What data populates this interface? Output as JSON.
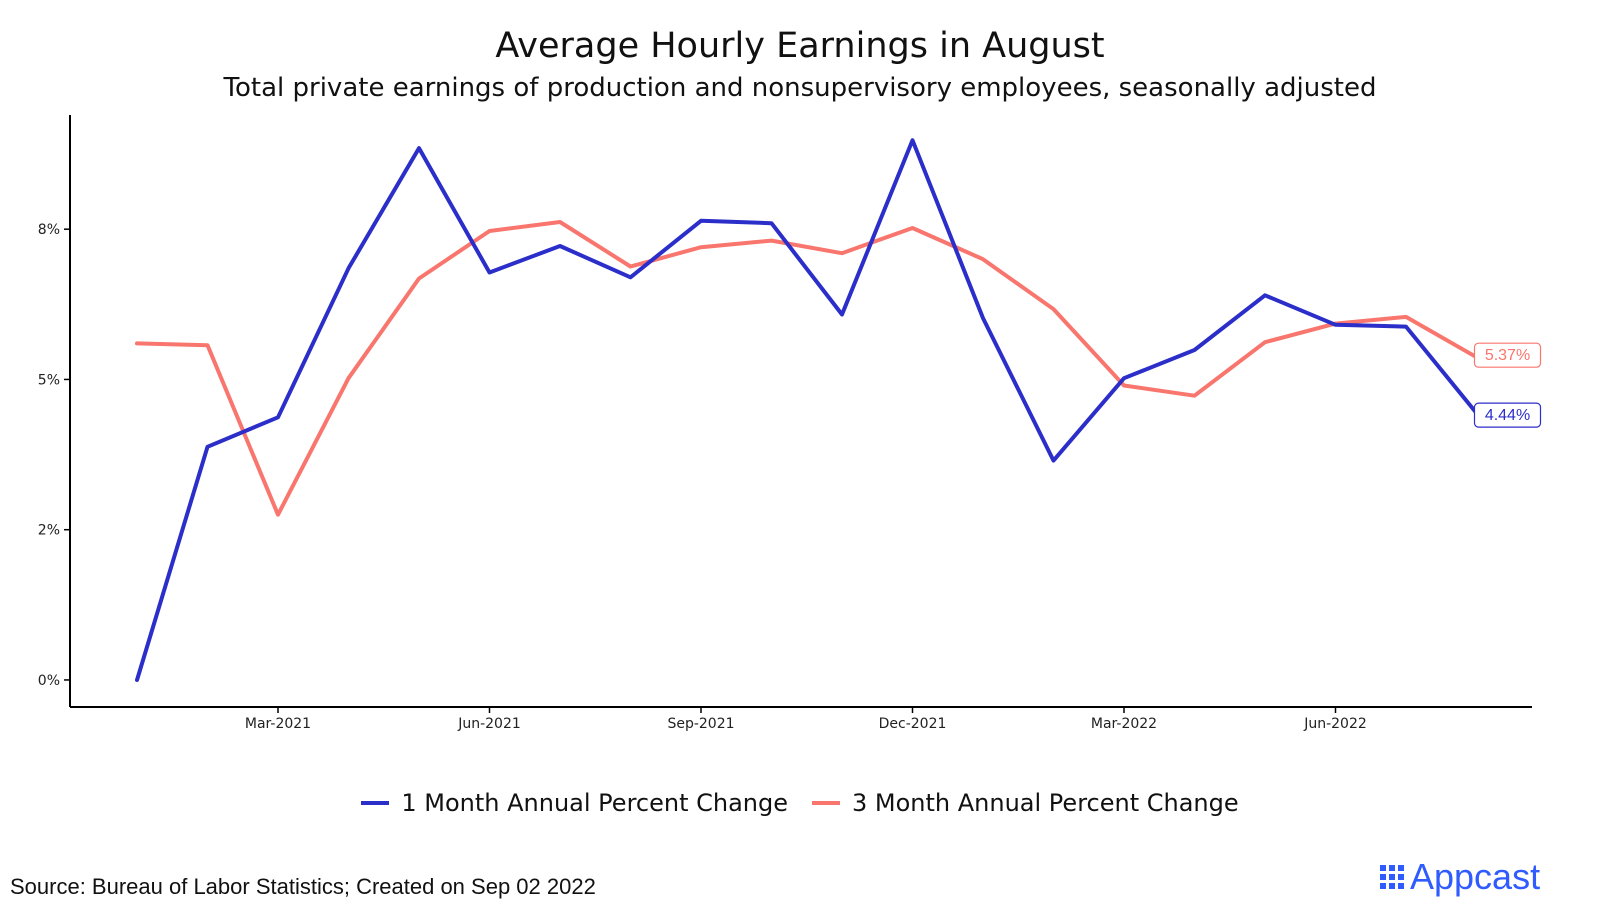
{
  "title": "Average Hourly Earnings in August",
  "subtitle": "Total private earnings of production and nonsupervisory employees, seasonally adjusted",
  "source": "Source: Bureau of Labor Statistics; Created on Sep 02 2022",
  "brand": {
    "name": "Appcast",
    "color": "#2f5bff"
  },
  "chart_data": {
    "type": "line",
    "x": [
      "Jan-2021",
      "Feb-2021",
      "Mar-2021",
      "Apr-2021",
      "May-2021",
      "Jun-2021",
      "Jul-2021",
      "Aug-2021",
      "Sep-2021",
      "Oct-2021",
      "Nov-2021",
      "Dec-2021",
      "Jan-2022",
      "Feb-2022",
      "Mar-2022",
      "Apr-2022",
      "May-2022",
      "Jun-2022",
      "Jul-2022",
      "Aug-2022"
    ],
    "x_ticks": [
      "Mar-2021",
      "Jun-2021",
      "Sep-2021",
      "Dec-2021",
      "Mar-2022",
      "Jun-2022"
    ],
    "y_ticks": [
      "0%",
      "2%",
      "5%",
      "8%"
    ],
    "y_tick_values": [
      0,
      2.5,
      5,
      7.5
    ],
    "ylim": [
      -0.45,
      9.4
    ],
    "series": [
      {
        "name": "1 Month Annual Percent Change",
        "color": "#2b2ec9",
        "values": [
          0.0,
          3.88,
          4.37,
          6.85,
          8.85,
          6.78,
          7.22,
          6.7,
          7.64,
          7.6,
          6.08,
          8.98,
          6.02,
          3.65,
          5.02,
          5.49,
          6.4,
          5.91,
          5.88,
          4.44
        ],
        "end_label": "4.44%"
      },
      {
        "name": "3 Month Annual Percent Change",
        "color": "#f8766d",
        "values": [
          5.6,
          5.57,
          2.75,
          5.02,
          6.68,
          7.47,
          7.62,
          6.88,
          7.2,
          7.31,
          7.1,
          7.52,
          7.0,
          6.17,
          4.9,
          4.73,
          5.62,
          5.93,
          6.04,
          5.37
        ],
        "end_label": "5.37%"
      }
    ],
    "title": "Average Hourly Earnings in August",
    "subtitle": "Total private earnings of production and nonsupervisory employees, seasonally adjusted",
    "xlabel": "",
    "ylabel": "",
    "grid": false,
    "legend_position": "bottom"
  }
}
